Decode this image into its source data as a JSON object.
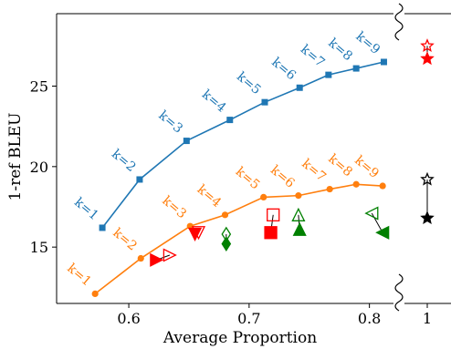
{
  "chart_data": {
    "type": "line",
    "title": "",
    "xlabel": "Average Proportion",
    "ylabel": "1-ref BLEU",
    "xlim": [
      0.54,
      0.82
    ],
    "ylim": [
      11.5,
      29.5
    ],
    "x_ticks": [
      0.6,
      0.7,
      0.8
    ],
    "x_tick_labels": [
      "0.6",
      "0.7",
      "0.8"
    ],
    "y_ticks": [
      15,
      20,
      25
    ],
    "y_tick_labels": [
      "15",
      "20",
      "25"
    ],
    "broken_axis": {
      "right_panel_x_value": 1,
      "right_panel_tick_label": "1"
    },
    "grid": false,
    "legend": "none",
    "series": [
      {
        "color": "#1f77b4",
        "marker": "square",
        "labels": [
          "k=1",
          "k=2",
          "k=3",
          "k=4",
          "k=5",
          "k=6",
          "k=7",
          "k=8",
          "k=9"
        ],
        "x": [
          0.578,
          0.609,
          0.648,
          0.684,
          0.713,
          0.742,
          0.766,
          0.789,
          0.812
        ],
        "y": [
          16.2,
          19.2,
          21.6,
          22.9,
          24.0,
          24.9,
          25.7,
          26.1,
          26.5
        ]
      },
      {
        "color": "#ff7f0e",
        "marker": "circle",
        "labels": [
          "k=1",
          "k=2",
          "k=3",
          "k=4",
          "k=5",
          "k=6",
          "k=7",
          "k=8",
          "k=9"
        ],
        "x": [
          0.572,
          0.61,
          0.651,
          0.68,
          0.712,
          0.741,
          0.767,
          0.789,
          0.811
        ],
        "y": [
          12.1,
          14.3,
          16.3,
          17.0,
          18.1,
          18.2,
          18.6,
          18.9,
          18.8
        ]
      }
    ],
    "arrow_pairs": [
      {
        "color": "#ff0000",
        "marker": "triangle-right",
        "from": [
          0.634,
          14.5
        ],
        "to": [
          0.623,
          14.2
        ]
      },
      {
        "color": "#ff0000",
        "marker": "triangle-down",
        "from": [
          0.658,
          15.9
        ],
        "to": [
          0.655,
          15.8
        ]
      },
      {
        "color": "#008000",
        "marker": "diamond",
        "from": [
          0.681,
          15.8
        ],
        "to": [
          0.681,
          15.2
        ]
      },
      {
        "color": "#ff0000",
        "marker": "square",
        "from": [
          0.72,
          17.0
        ],
        "to": [
          0.718,
          15.9
        ]
      },
      {
        "color": "#008000",
        "marker": "triangle-up",
        "from": [
          0.741,
          17.0
        ],
        "to": [
          0.742,
          16.1
        ]
      },
      {
        "color": "#008000",
        "marker": "triangle-left",
        "from": [
          0.802,
          17.1
        ],
        "to": [
          0.811,
          15.9
        ]
      },
      {
        "color": "#ff0000",
        "marker": "star",
        "from": [
          1,
          27.5
        ],
        "to": [
          1,
          26.7
        ]
      },
      {
        "color": "#000000",
        "marker": "star",
        "from": [
          1,
          19.2
        ],
        "to": [
          1,
          16.8
        ]
      }
    ]
  }
}
